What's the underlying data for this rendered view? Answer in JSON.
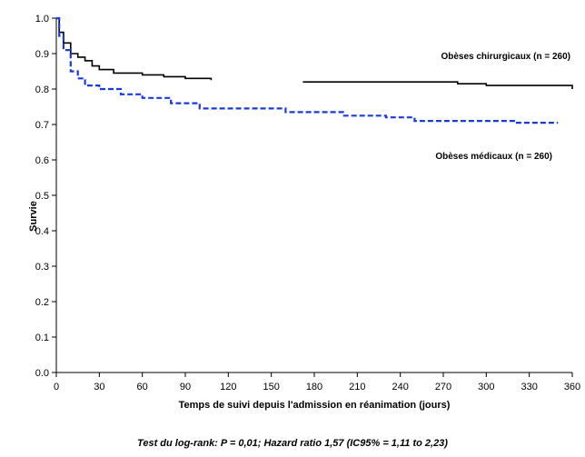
{
  "chart_data": {
    "type": "line",
    "title": "",
    "xlabel": "Temps de suivi depuis l'admission en réanimation (jours)",
    "ylabel": "Survie",
    "xlim": [
      0,
      360
    ],
    "ylim": [
      0.0,
      1.0
    ],
    "x_ticks": [
      "0",
      "30",
      "60",
      "90",
      "120",
      "150",
      "180",
      "210",
      "240",
      "270",
      "300",
      "330",
      "360"
    ],
    "y_ticks": [
      "0.0",
      "0.1",
      "0.2",
      "0.3",
      "0.4",
      "0.5",
      "0.6",
      "0.7",
      "0.8",
      "0.9",
      "1.0"
    ],
    "grid": false,
    "series": [
      {
        "name": "Obèses chirurgicaux (n = 260)",
        "color": "#000000",
        "style": "solid",
        "segments": [
          [
            [
              0,
              1.0
            ],
            [
              2,
              0.96
            ],
            [
              5,
              0.93
            ],
            [
              10,
              0.9
            ],
            [
              15,
              0.89
            ],
            [
              20,
              0.88
            ],
            [
              25,
              0.865
            ],
            [
              30,
              0.855
            ],
            [
              40,
              0.845
            ],
            [
              60,
              0.84
            ],
            [
              75,
              0.835
            ],
            [
              90,
              0.83
            ],
            [
              108,
              0.825
            ]
          ],
          [
            [
              172,
              0.82
            ],
            [
              230,
              0.82
            ],
            [
              280,
              0.815
            ],
            [
              300,
              0.81
            ],
            [
              340,
              0.81
            ],
            [
              360,
              0.8
            ]
          ]
        ]
      },
      {
        "name": "Obèses médicaux (n = 260)",
        "color": "#1a3adf",
        "style": "dashed",
        "segments": [
          [
            [
              0,
              1.0
            ],
            [
              2,
              0.95
            ],
            [
              5,
              0.91
            ],
            [
              10,
              0.85
            ],
            [
              15,
              0.83
            ],
            [
              20,
              0.81
            ],
            [
              30,
              0.8
            ],
            [
              45,
              0.785
            ],
            [
              60,
              0.775
            ],
            [
              80,
              0.76
            ],
            [
              100,
              0.745
            ],
            [
              130,
              0.745
            ],
            [
              160,
              0.735
            ],
            [
              200,
              0.725
            ],
            [
              230,
              0.72
            ],
            [
              250,
              0.71
            ],
            [
              300,
              0.71
            ],
            [
              320,
              0.705
            ],
            [
              350,
              0.705
            ]
          ]
        ]
      }
    ],
    "annotations": [
      "Obèses chirurgicaux (n = 260)",
      "Obèses médicaux (n = 260)",
      "Test du log-rank: P = 0,01; Hazard ratio 1,57 (IC95% = 1,11 to 2,23)"
    ]
  }
}
